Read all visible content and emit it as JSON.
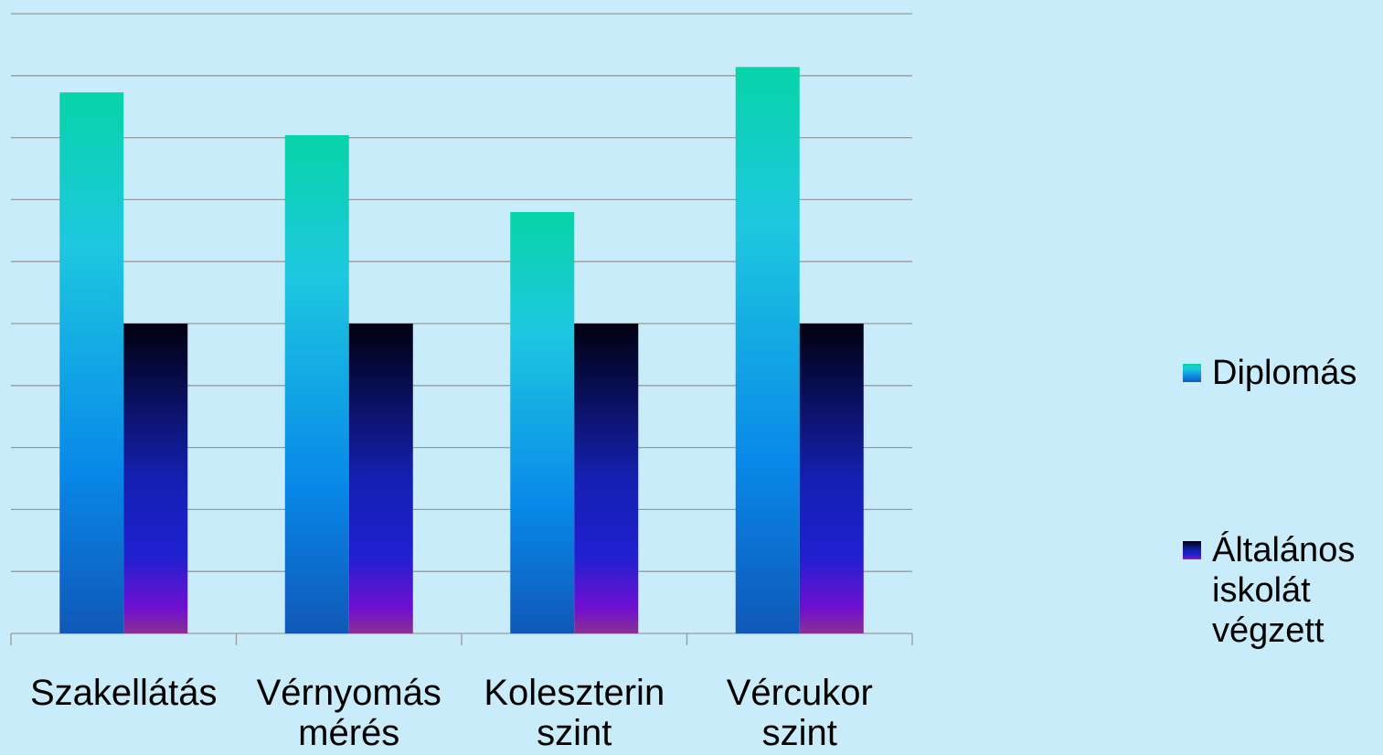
{
  "chart_data": {
    "type": "bar",
    "categories": [
      "Szakellátás",
      "Vérnyomás mérés",
      "Koleszterin szint",
      "Vércukor szint"
    ],
    "series": [
      {
        "name": "Diplomás",
        "color": "#1ec8e0",
        "values": [
          8.73,
          8.04,
          6.8,
          9.14
        ]
      },
      {
        "name": "Általános iskolát végzett",
        "color": "#1420b0",
        "values": [
          5,
          5,
          5,
          5
        ]
      }
    ],
    "ylim": [
      0,
      10
    ],
    "yticks": [
      0,
      1,
      2,
      3,
      4,
      5,
      6,
      7,
      8,
      9,
      10
    ],
    "grid": true,
    "legend": "right"
  }
}
